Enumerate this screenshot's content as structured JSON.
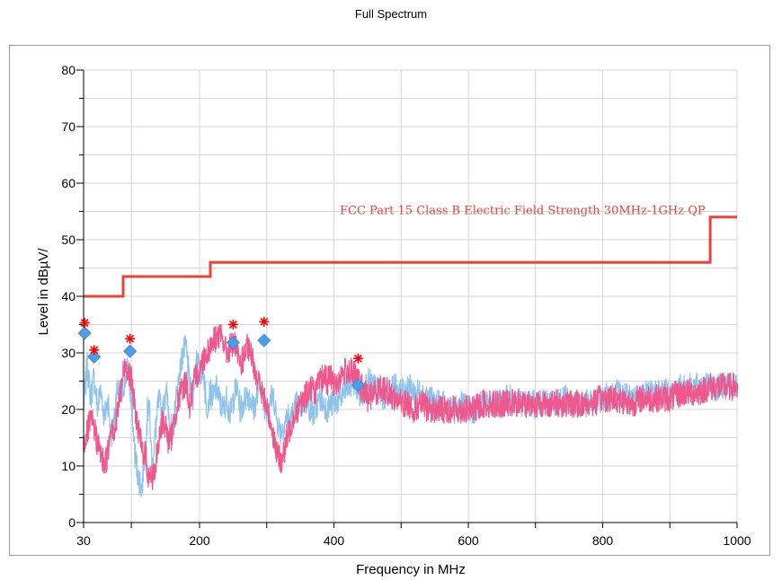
{
  "chart_data": {
    "type": "line",
    "title": "Full Spectrum",
    "xlabel": "Frequency in MHz",
    "ylabel": "Level in dBµV/",
    "xlim": [
      30,
      1000
    ],
    "ylim": [
      0,
      80
    ],
    "x_ticks": [
      30,
      200,
      400,
      600,
      800,
      1000
    ],
    "y_ticks": [
      0,
      10,
      20,
      30,
      40,
      50,
      60,
      70,
      80
    ],
    "grid": true,
    "limit_line": {
      "name": "FCC Part 15 Class B Electric Field Strength 30MHz-1GHz QP",
      "color": "#e8443a",
      "points": [
        [
          30,
          40
        ],
        [
          88,
          40
        ],
        [
          88,
          43.5
        ],
        [
          216,
          43.5
        ],
        [
          216,
          46
        ],
        [
          960,
          46
        ],
        [
          960,
          54
        ],
        [
          1000,
          54
        ]
      ]
    },
    "series": [
      {
        "color": "#8ec3ee",
        "x": [
          30,
          35,
          40,
          45,
          50,
          55,
          60,
          65,
          70,
          75,
          80,
          85,
          90,
          95,
          100,
          105,
          110,
          115,
          120,
          125,
          130,
          135,
          140,
          145,
          150,
          155,
          160,
          165,
          170,
          175,
          180,
          185,
          190,
          195,
          200,
          205,
          210,
          215,
          220,
          225,
          230,
          235,
          240,
          245,
          250,
          255,
          260,
          265,
          270,
          275,
          280,
          285,
          290,
          295,
          300,
          305,
          310,
          315,
          320,
          325,
          330,
          335,
          340,
          345,
          350,
          355,
          360,
          365,
          370,
          375,
          380,
          385,
          390,
          395,
          400,
          410,
          420,
          430,
          440,
          450,
          460,
          470,
          480,
          490,
          500,
          510,
          520,
          530,
          540,
          550,
          560,
          570,
          580,
          590,
          600,
          610,
          620,
          640,
          660,
          680,
          700,
          720,
          740,
          760,
          780,
          800,
          820,
          840,
          860,
          880,
          900,
          920,
          940,
          960,
          980,
          1000
        ],
        "y": [
          21,
          28,
          22,
          26,
          20,
          24,
          18,
          22,
          15,
          19,
          24,
          22,
          25,
          28,
          20,
          12,
          8,
          6,
          14,
          22,
          10,
          16,
          22,
          18,
          24,
          19,
          15,
          22,
          26,
          30,
          31,
          24,
          22,
          30,
          26,
          28,
          20,
          23,
          22,
          24,
          21,
          20,
          22,
          19,
          22,
          24,
          20,
          21,
          23,
          22,
          20,
          22,
          25,
          21,
          20,
          22,
          22,
          18,
          16,
          17,
          19,
          18,
          20,
          21,
          20,
          22,
          21,
          20,
          19,
          21,
          22,
          21,
          20,
          21,
          21,
          22,
          24,
          25,
          22,
          25,
          24,
          22,
          23,
          24,
          23,
          24,
          23,
          23,
          22,
          21,
          21,
          20,
          20,
          21,
          20,
          20,
          21,
          21,
          22,
          21,
          21,
          21,
          22,
          21,
          21,
          22,
          23,
          22,
          23,
          23,
          23,
          24,
          24,
          24,
          24,
          24
        ],
        "spread": 5
      },
      {
        "color": "#f0578c",
        "x": [
          30,
          35,
          40,
          45,
          50,
          55,
          60,
          65,
          70,
          75,
          80,
          85,
          90,
          95,
          100,
          105,
          110,
          115,
          120,
          125,
          130,
          135,
          140,
          145,
          150,
          155,
          160,
          165,
          170,
          175,
          180,
          185,
          190,
          195,
          200,
          205,
          210,
          215,
          220,
          225,
          230,
          235,
          240,
          245,
          250,
          255,
          260,
          265,
          270,
          275,
          280,
          285,
          290,
          295,
          300,
          305,
          310,
          315,
          320,
          325,
          330,
          335,
          340,
          345,
          350,
          355,
          360,
          365,
          370,
          375,
          380,
          385,
          390,
          395,
          400,
          410,
          420,
          430,
          440,
          450,
          460,
          470,
          480,
          490,
          500,
          510,
          520,
          530,
          540,
          550,
          560,
          570,
          580,
          590,
          600,
          610,
          620,
          640,
          660,
          680,
          700,
          720,
          740,
          760,
          780,
          800,
          820,
          840,
          860,
          880,
          900,
          920,
          940,
          960,
          980,
          1000
        ],
        "y": [
          14,
          16,
          18,
          17,
          14,
          12,
          10,
          12,
          18,
          16,
          20,
          24,
          28,
          27,
          25,
          20,
          16,
          13,
          12,
          8,
          8,
          10,
          14,
          18,
          17,
          14,
          16,
          20,
          22,
          24,
          25,
          20,
          24,
          26,
          27,
          29,
          30,
          31,
          32,
          33,
          33,
          32,
          30,
          31,
          32,
          30,
          28,
          29,
          31,
          30,
          28,
          26,
          24,
          22,
          20,
          18,
          15,
          12,
          11,
          12,
          15,
          17,
          19,
          20,
          21,
          22,
          23,
          24,
          23,
          24,
          25,
          26,
          25,
          26,
          24,
          26,
          27,
          26,
          24,
          22,
          23,
          24,
          23,
          22,
          21,
          21,
          20,
          21,
          20,
          20,
          20,
          20,
          20,
          20,
          20,
          20,
          21,
          21,
          21,
          21,
          21,
          21,
          21,
          21,
          21,
          22,
          22,
          21,
          22,
          22,
          22,
          23,
          23,
          24,
          24,
          24
        ],
        "spread": 5
      }
    ],
    "peak_markers": {
      "color": "#ff0000",
      "symbol": "asterisk",
      "points": [
        [
          31.5,
          35.3
        ],
        [
          45.5,
          30.5
        ],
        [
          98,
          32.5
        ],
        [
          250,
          35
        ],
        [
          296,
          35.5
        ],
        [
          436,
          29
        ]
      ]
    },
    "final_markers": {
      "color": "#4a9ee8",
      "symbol": "diamond",
      "points": [
        [
          31.5,
          33.5
        ],
        [
          45.5,
          29.3
        ],
        [
          98,
          30.3
        ],
        [
          250,
          31.8
        ],
        [
          296,
          32.2
        ],
        [
          436,
          24.3
        ]
      ]
    }
  }
}
